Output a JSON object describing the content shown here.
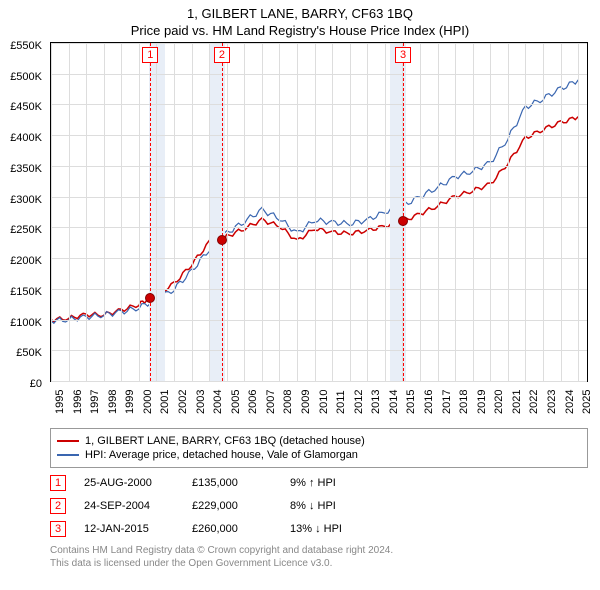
{
  "title_line1": "1, GILBERT LANE, BARRY, CF63 1BQ",
  "title_line2": "Price paid vs. HM Land Registry's House Price Index (HPI)",
  "chart": {
    "type": "line",
    "x_years": [
      1995,
      1996,
      1997,
      1998,
      1999,
      2000,
      2001,
      2002,
      2003,
      2004,
      2005,
      2006,
      2007,
      2008,
      2009,
      2010,
      2011,
      2012,
      2013,
      2014,
      2015,
      2016,
      2017,
      2018,
      2019,
      2020,
      2021,
      2022,
      2023,
      2024,
      2025
    ],
    "xlim": [
      1995,
      2025.5
    ],
    "ylim": [
      0,
      550000
    ],
    "ytick_step": 50000,
    "ytick_labels": [
      "£0",
      "£50K",
      "£100K",
      "£150K",
      "£200K",
      "£250K",
      "£300K",
      "£350K",
      "£400K",
      "£450K",
      "£500K",
      "£550K"
    ],
    "grid_color": "#dddddd",
    "background_color": "#ffffff",
    "shaded_bands": [
      {
        "from": 2000.6,
        "to": 2001.5,
        "color": "#e8eef7"
      },
      {
        "from": 2004.0,
        "to": 2004.9,
        "color": "#e8eef7"
      },
      {
        "from": 2014.3,
        "to": 2015.2,
        "color": "#e8eef7"
      }
    ],
    "series": [
      {
        "name": "1, GILBERT LANE, BARRY, CF63 1BQ (detached house)",
        "color": "#cc0000",
        "width": 1.5,
        "data": [
          [
            1995,
            100000
          ],
          [
            1996,
            102000
          ],
          [
            1997,
            108000
          ],
          [
            1998,
            108000
          ],
          [
            1999,
            115000
          ],
          [
            2000,
            125000
          ],
          [
            2000.65,
            135000
          ],
          [
            2001,
            140000
          ],
          [
            2002,
            158000
          ],
          [
            2003,
            190000
          ],
          [
            2004,
            225000
          ],
          [
            2004.73,
            229000
          ],
          [
            2005,
            235000
          ],
          [
            2006,
            248000
          ],
          [
            2007,
            262000
          ],
          [
            2008,
            252000
          ],
          [
            2009,
            228000
          ],
          [
            2010,
            248000
          ],
          [
            2011,
            242000
          ],
          [
            2012,
            240000
          ],
          [
            2013,
            245000
          ],
          [
            2014,
            252000
          ],
          [
            2015.03,
            260000
          ],
          [
            2016,
            272000
          ],
          [
            2017,
            285000
          ],
          [
            2018,
            300000
          ],
          [
            2019,
            310000
          ],
          [
            2020,
            320000
          ],
          [
            2021,
            355000
          ],
          [
            2022,
            395000
          ],
          [
            2023,
            410000
          ],
          [
            2024,
            420000
          ],
          [
            2025,
            430000
          ]
        ]
      },
      {
        "name": "HPI: Average price, detached house, Vale of Glamorgan",
        "color": "#3a66b0",
        "width": 1.2,
        "data": [
          [
            1995,
            98000
          ],
          [
            1996,
            100000
          ],
          [
            1997,
            104000
          ],
          [
            1998,
            108000
          ],
          [
            1999,
            112000
          ],
          [
            2000,
            120000
          ],
          [
            2001,
            132000
          ],
          [
            2002,
            150000
          ],
          [
            2003,
            178000
          ],
          [
            2004,
            215000
          ],
          [
            2005,
            240000
          ],
          [
            2006,
            260000
          ],
          [
            2007,
            278000
          ],
          [
            2008,
            265000
          ],
          [
            2009,
            240000
          ],
          [
            2010,
            262000
          ],
          [
            2011,
            258000
          ],
          [
            2012,
            256000
          ],
          [
            2013,
            262000
          ],
          [
            2014,
            275000
          ],
          [
            2015,
            285000
          ],
          [
            2016,
            300000
          ],
          [
            2017,
            315000
          ],
          [
            2018,
            332000
          ],
          [
            2019,
            342000
          ],
          [
            2020,
            355000
          ],
          [
            2021,
            395000
          ],
          [
            2022,
            445000
          ],
          [
            2023,
            460000
          ],
          [
            2024,
            475000
          ],
          [
            2025,
            490000
          ]
        ]
      }
    ],
    "markers": [
      {
        "n": "1",
        "x": 2000.65,
        "y": 135000
      },
      {
        "n": "2",
        "x": 2004.73,
        "y": 229000
      },
      {
        "n": "3",
        "x": 2015.03,
        "y": 260000
      }
    ]
  },
  "legend": {
    "items": [
      {
        "color": "#cc0000",
        "label": "1, GILBERT LANE, BARRY, CF63 1BQ (detached house)"
      },
      {
        "color": "#3a66b0",
        "label": "HPI: Average price, detached house, Vale of Glamorgan"
      }
    ]
  },
  "transactions": [
    {
      "n": "1",
      "date": "25-AUG-2000",
      "amount": "£135,000",
      "hpi": "9% ↑ HPI"
    },
    {
      "n": "2",
      "date": "24-SEP-2004",
      "amount": "£229,000",
      "hpi": "8% ↓ HPI"
    },
    {
      "n": "3",
      "date": "12-JAN-2015",
      "amount": "£260,000",
      "hpi": "13% ↓ HPI"
    }
  ],
  "footer_line1": "Contains HM Land Registry data © Crown copyright and database right 2024.",
  "footer_line2": "This data is licensed under the Open Government Licence v3.0."
}
